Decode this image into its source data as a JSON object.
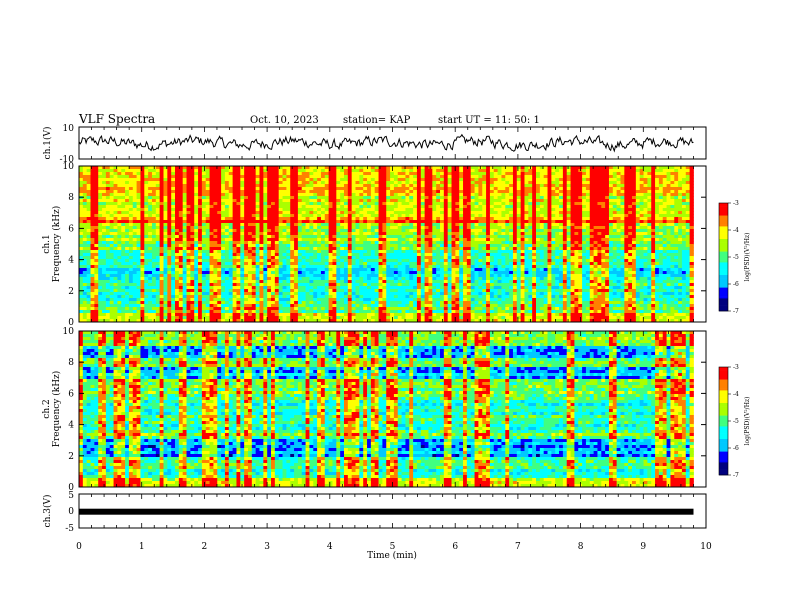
{
  "header": {
    "title": "VLF Spectra",
    "date": "Oct. 10, 2023",
    "station": "station= KAP",
    "start_ut": "start  UT =   11: 50: 1"
  },
  "colors": {
    "colormap": [
      "#00007f",
      "#0000ff",
      "#00c8ff",
      "#00ffff",
      "#40ff80",
      "#aaff00",
      "#ffff00",
      "#ff8000",
      "#ff0000",
      "#ffffff"
    ],
    "trace": "#000000"
  },
  "chart_data": [
    {
      "type": "line",
      "name": "ch1",
      "ylabel": "ch.1(V)",
      "ylim": [
        -10,
        10
      ],
      "yticks": [
        "10",
        "-10"
      ],
      "xlim": [
        0,
        9.8
      ],
      "note_shape": "noisy waveform oscillating around 0 V with amplitude about 4 V"
    },
    {
      "type": "heatmap",
      "name": "ch1-spectrogram",
      "ylabel": "Frequency  (kHz)",
      "panel_label": "ch.1",
      "ylim": [
        0,
        10
      ],
      "yticks": [
        "0",
        "2",
        "4",
        "6",
        "8",
        "10"
      ],
      "xlim": [
        0,
        9.8
      ],
      "colorbar": {
        "label": "log(PSD)(V²/Hz)",
        "range": [
          -7,
          -3
        ],
        "ticks": [
          "-3",
          "-4",
          "-5",
          "-6",
          "-7"
        ]
      },
      "bands_khz": [
        {
          "from": 0.0,
          "to": 0.6,
          "level": -4.2
        },
        {
          "from": 0.6,
          "to": 1.4,
          "level": -4.9
        },
        {
          "from": 1.4,
          "to": 2.6,
          "level": -5.3
        },
        {
          "from": 2.6,
          "to": 3.4,
          "level": -5.6
        },
        {
          "from": 3.4,
          "to": 4.6,
          "level": -5.4
        },
        {
          "from": 4.6,
          "to": 5.0,
          "level": -4.8
        },
        {
          "from": 5.0,
          "to": 6.4,
          "level": -4.6
        },
        {
          "from": 6.4,
          "to": 6.7,
          "level": -3.6
        },
        {
          "from": 6.7,
          "to": 8.0,
          "level": -4.4
        },
        {
          "from": 8.0,
          "to": 10.0,
          "level": -4.1
        }
      ]
    },
    {
      "type": "heatmap",
      "name": "ch2-spectrogram",
      "ylabel": "Frequency  (kHz)",
      "panel_label": "ch.2",
      "ylim": [
        0,
        10
      ],
      "yticks": [
        "0",
        "2",
        "4",
        "6",
        "8",
        "10"
      ],
      "xlim": [
        0,
        9.8
      ],
      "colorbar": {
        "label": "log(PSD)(V²/Hz)",
        "range": [
          -7,
          -3
        ],
        "ticks": [
          "-3",
          "-4",
          "-5",
          "-6",
          "-7"
        ]
      },
      "bands_khz": [
        {
          "from": 0.0,
          "to": 0.5,
          "level": -4.3
        },
        {
          "from": 0.5,
          "to": 2.0,
          "level": -5.2
        },
        {
          "from": 2.0,
          "to": 3.0,
          "level": -6.0
        },
        {
          "from": 3.0,
          "to": 3.6,
          "level": -4.9
        },
        {
          "from": 3.6,
          "to": 5.6,
          "level": -5.3
        },
        {
          "from": 5.6,
          "to": 7.0,
          "level": -4.8
        },
        {
          "from": 7.0,
          "to": 7.6,
          "level": -5.8
        },
        {
          "from": 7.6,
          "to": 8.2,
          "level": -4.9
        },
        {
          "from": 8.2,
          "to": 9.0,
          "level": -5.9
        },
        {
          "from": 9.0,
          "to": 10.0,
          "level": -4.6
        }
      ]
    },
    {
      "type": "line",
      "name": "ch3",
      "ylabel": "ch.3(V)",
      "ylim": [
        -5,
        5
      ],
      "yticks": [
        "5",
        "0",
        "-5"
      ],
      "xlim": [
        0,
        9.8
      ],
      "note_shape": "thick flat trace at about -0.2 V"
    }
  ],
  "xaxis": {
    "label": "Time  (min)",
    "ticks": [
      "0",
      "1",
      "2",
      "3",
      "4",
      "5",
      "6",
      "7",
      "8",
      "9",
      "10"
    ],
    "range": [
      0,
      10
    ]
  }
}
